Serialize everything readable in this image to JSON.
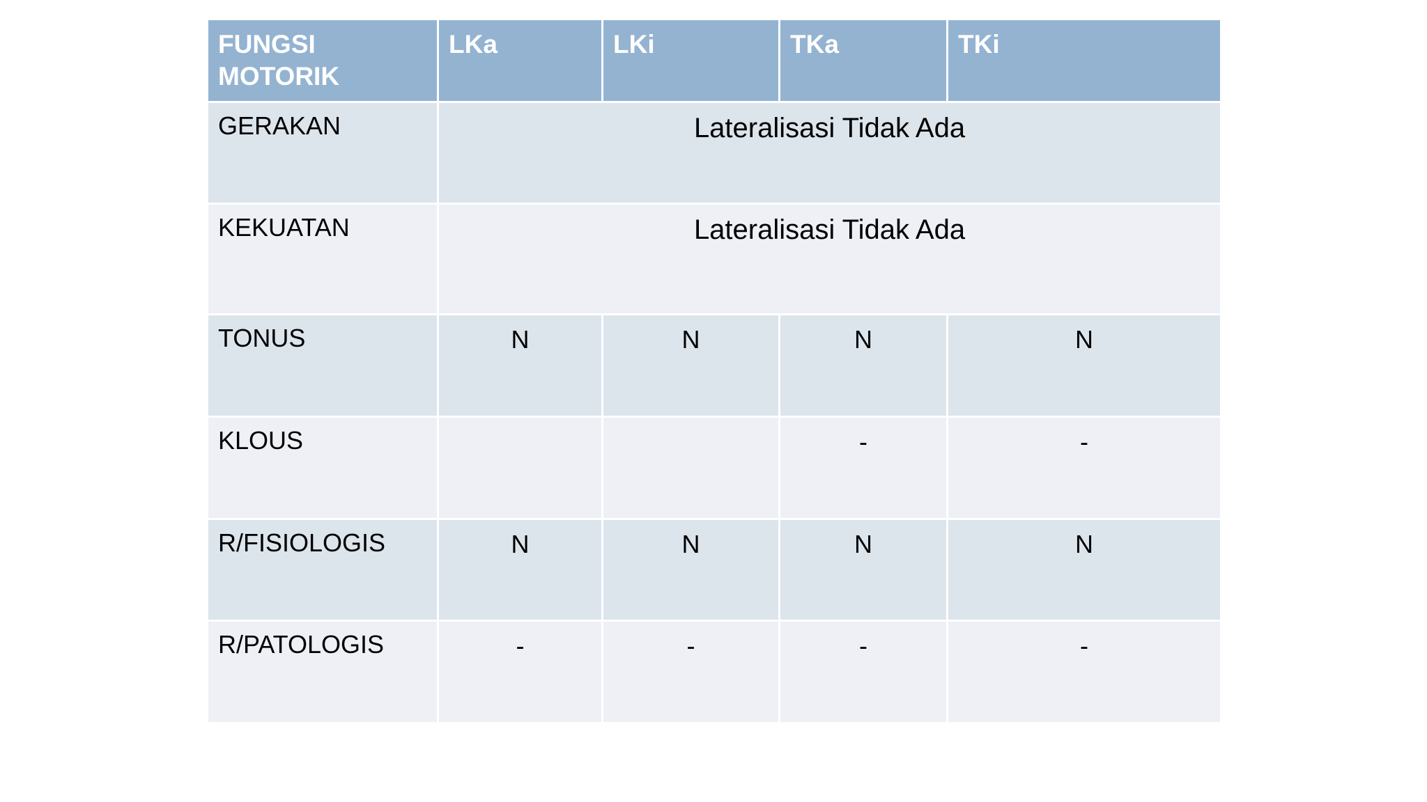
{
  "table": {
    "header": [
      "FUNGSI MOTORIK",
      "LKa",
      "LKi",
      "TKa",
      "TKi"
    ],
    "rows": [
      [
        "GERAKAN",
        "Lateralisasi Tidak Ada"
      ],
      [
        "KEKUATAN",
        "Lateralisasi Tidak Ada"
      ],
      [
        "TONUS",
        "N",
        "N",
        "N",
        "N"
      ],
      [
        "KLOUS",
        null,
        null,
        "-",
        "-"
      ],
      [
        "R/FISIOLOGIS",
        "N",
        "N",
        "N",
        "N"
      ],
      [
        "R/PATOLOGIS",
        "-",
        "-",
        "-",
        "-"
      ]
    ]
  }
}
